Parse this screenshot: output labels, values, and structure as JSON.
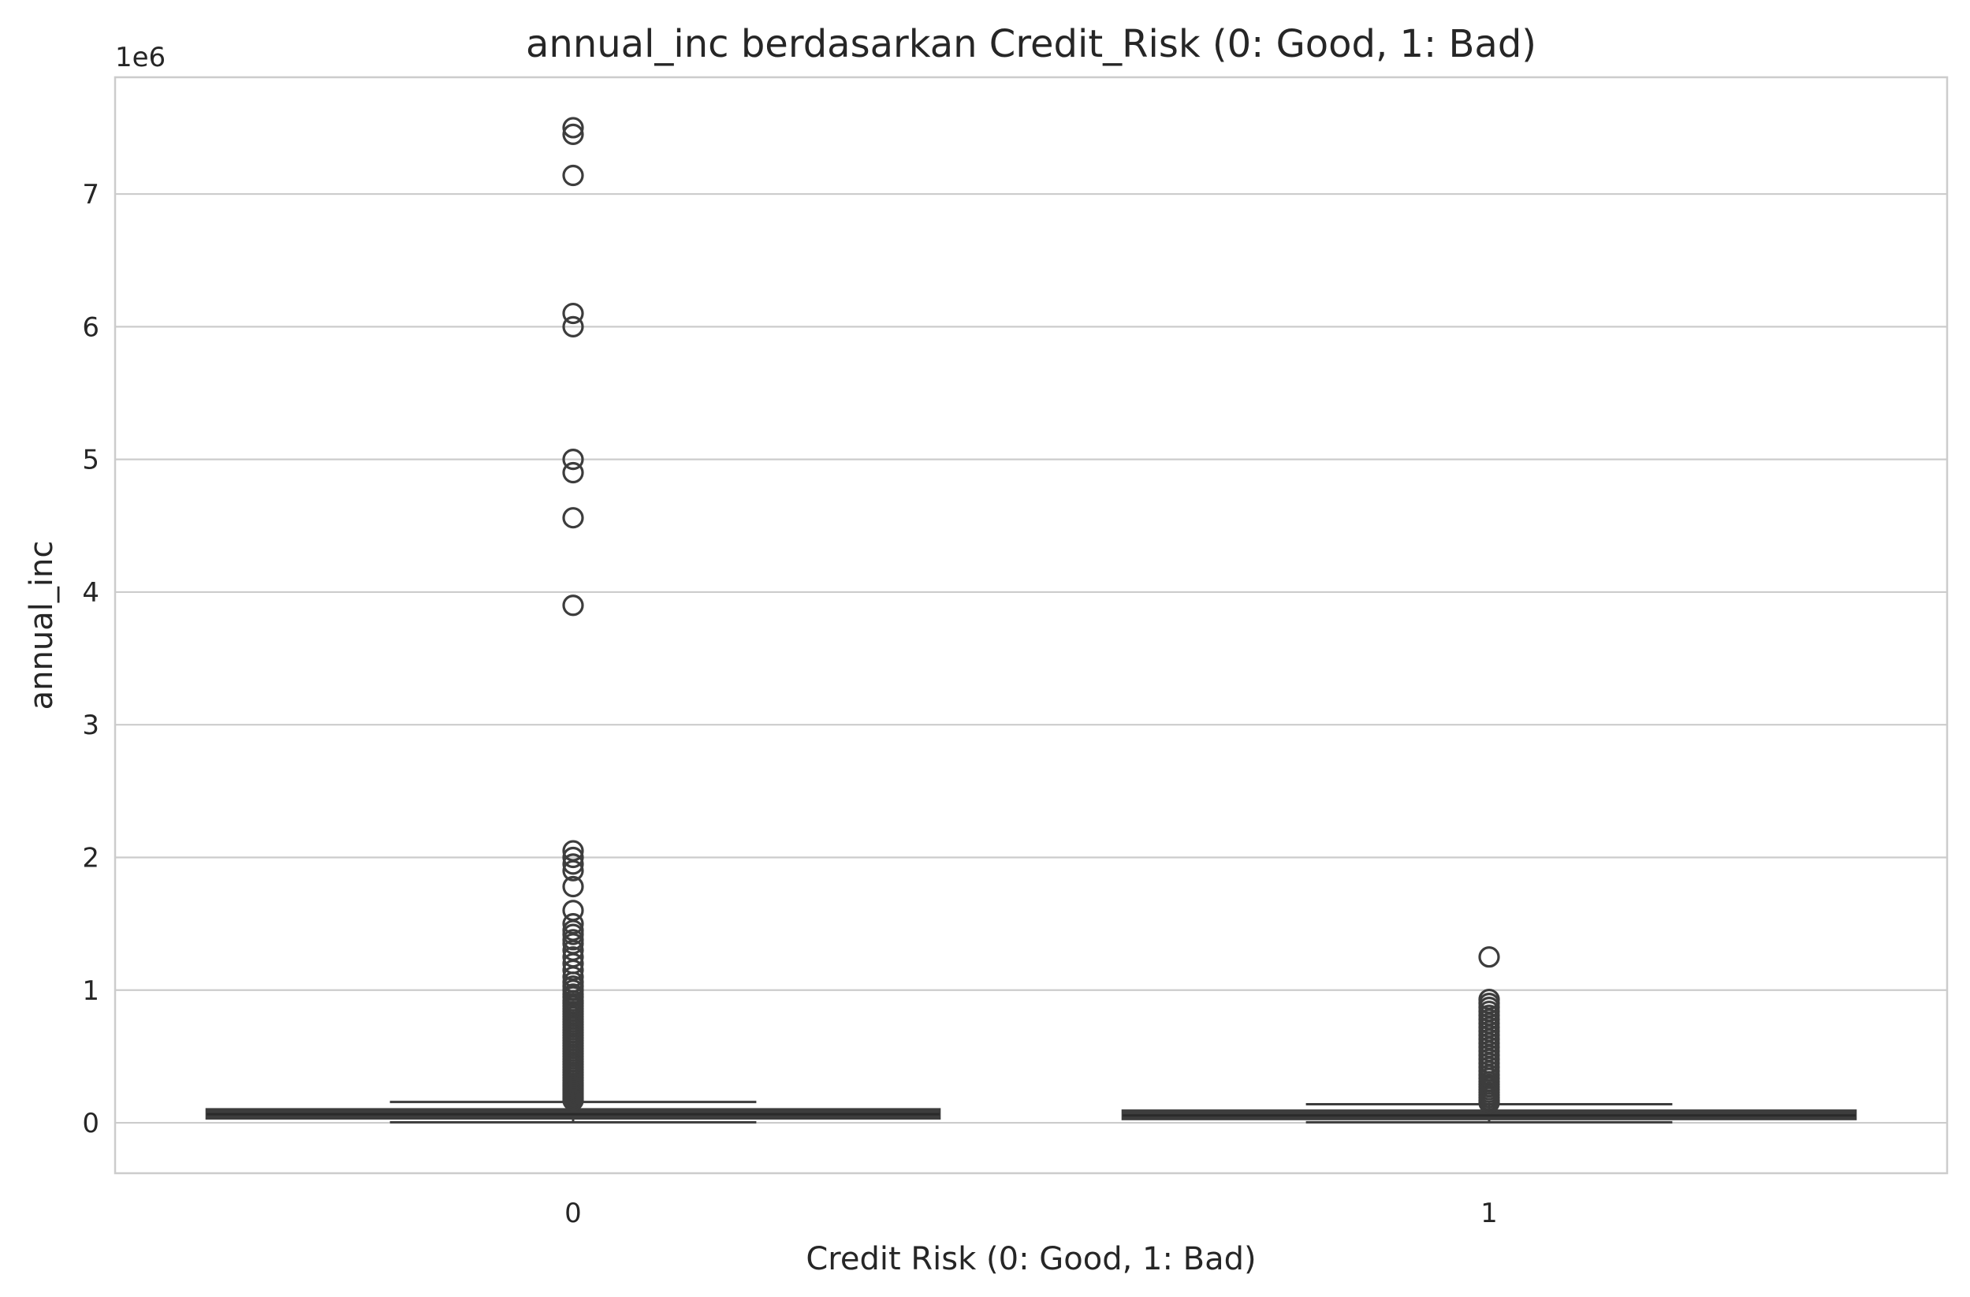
{
  "chart_data": {
    "type": "box",
    "title": "annual_inc berdasarkan Credit_Risk (0: Good, 1: Bad)",
    "xlabel": "Credit Risk (0: Good, 1: Bad)",
    "ylabel": "annual_inc",
    "y_offset_label": "1e6",
    "y_scale_factor": 1000000,
    "ylim": [
      -380000,
      7880000
    ],
    "y_ticks": [
      0,
      1000000,
      2000000,
      3000000,
      4000000,
      5000000,
      6000000,
      7000000
    ],
    "y_tick_labels": [
      "0",
      "1",
      "2",
      "3",
      "4",
      "5",
      "6",
      "7"
    ],
    "categories": [
      "0",
      "1"
    ],
    "grid": "horizontal",
    "box_color": "#3d3d3d",
    "boxes": [
      {
        "category": "0",
        "whisker_low": 4000,
        "q1": 45000,
        "median": 65000,
        "q3": 90000,
        "whisker_high": 157000,
        "outliers": [
          7500000,
          7450000,
          7140000,
          6100000,
          6000000,
          5000000,
          4900000,
          4560000,
          3900000,
          2050000,
          2000000,
          1950000,
          1900000,
          1780000,
          1600000,
          1500000,
          1450000,
          1420000,
          1380000,
          1350000,
          1300000,
          1250000,
          1200000,
          1150000,
          1100000,
          1060000,
          1030000,
          1000000,
          970000,
          950000,
          920000,
          900000,
          880000,
          860000,
          840000,
          820000,
          800000,
          780000,
          760000,
          740000,
          720000,
          700000,
          680000,
          660000,
          640000,
          620000,
          600000,
          580000,
          560000,
          540000,
          520000,
          500000,
          480000,
          460000,
          440000,
          420000,
          400000,
          380000,
          360000,
          340000,
          320000,
          300000,
          285000,
          270000,
          255000,
          240000,
          225000,
          210000,
          195000,
          180000,
          168000
        ]
      },
      {
        "category": "1",
        "whisker_low": 4000,
        "q1": 40000,
        "median": 55000,
        "q3": 80000,
        "whisker_high": 140000,
        "outliers": [
          1250000,
          930000,
          900000,
          870000,
          840000,
          810000,
          780000,
          750000,
          720000,
          690000,
          660000,
          630000,
          600000,
          570000,
          540000,
          510000,
          480000,
          450000,
          420000,
          390000,
          360000,
          335000,
          310000,
          290000,
          270000,
          250000,
          230000,
          210000,
          190000,
          170000,
          150000
        ]
      }
    ]
  }
}
